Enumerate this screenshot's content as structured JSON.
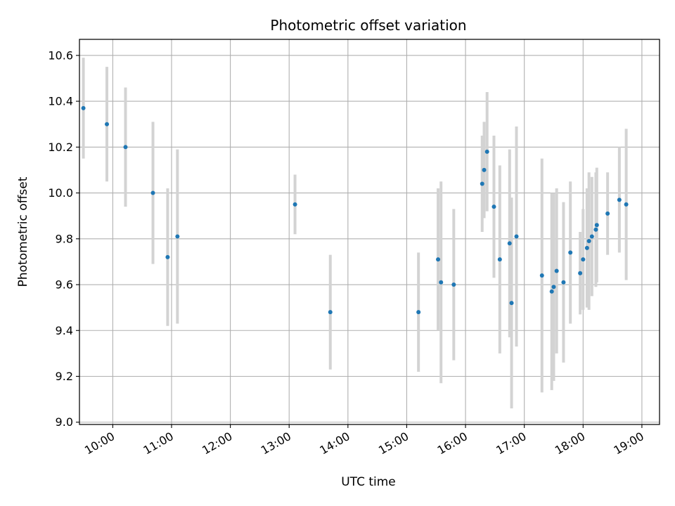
{
  "chart_data": {
    "type": "scatter",
    "title": "Photometric offset variation",
    "xlabel": "UTC time",
    "ylabel": "Photometric offset",
    "xlim": [
      "09:26",
      "19:18"
    ],
    "ylim": [
      8.99,
      10.67
    ],
    "x_ticks": [
      "10:00",
      "11:00",
      "12:00",
      "13:00",
      "14:00",
      "15:00",
      "16:00",
      "17:00",
      "18:00",
      "19:00"
    ],
    "y_ticks": [
      9.0,
      9.2,
      9.4,
      9.6,
      9.8,
      10.0,
      10.2,
      10.4,
      10.6
    ],
    "grid": true,
    "marker_color": "#1f77b4",
    "errorbar_color": "#d3d3d3",
    "points": [
      {
        "x": "09:30",
        "y": 10.37,
        "err": 0.22
      },
      {
        "x": "09:54",
        "y": 10.3,
        "err": 0.25
      },
      {
        "x": "10:13",
        "y": 10.2,
        "err": 0.26
      },
      {
        "x": "10:41",
        "y": 10.0,
        "err": 0.31
      },
      {
        "x": "10:56",
        "y": 9.72,
        "err": 0.3
      },
      {
        "x": "11:06",
        "y": 9.81,
        "err": 0.38
      },
      {
        "x": "13:06",
        "y": 9.95,
        "err": 0.13
      },
      {
        "x": "13:42",
        "y": 9.48,
        "err": 0.25
      },
      {
        "x": "15:12",
        "y": 9.48,
        "err": 0.26
      },
      {
        "x": "15:32",
        "y": 9.71,
        "err": 0.31
      },
      {
        "x": "15:35",
        "y": 9.61,
        "err": 0.44
      },
      {
        "x": "15:48",
        "y": 9.6,
        "err": 0.33
      },
      {
        "x": "16:17",
        "y": 10.04,
        "err": 0.21
      },
      {
        "x": "16:19",
        "y": 10.1,
        "err": 0.21
      },
      {
        "x": "16:22",
        "y": 10.18,
        "err": 0.26
      },
      {
        "x": "16:29",
        "y": 9.94,
        "err": 0.31
      },
      {
        "x": "16:35",
        "y": 9.71,
        "err": 0.41
      },
      {
        "x": "16:45",
        "y": 9.78,
        "err": 0.41
      },
      {
        "x": "16:47",
        "y": 9.52,
        "err": 0.46
      },
      {
        "x": "16:52",
        "y": 9.81,
        "err": 0.48
      },
      {
        "x": "17:18",
        "y": 9.64,
        "err": 0.51
      },
      {
        "x": "17:28",
        "y": 9.57,
        "err": 0.43
      },
      {
        "x": "17:30",
        "y": 9.59,
        "err": 0.41
      },
      {
        "x": "17:33",
        "y": 9.66,
        "err": 0.36
      },
      {
        "x": "17:40",
        "y": 9.61,
        "err": 0.35
      },
      {
        "x": "17:47",
        "y": 9.74,
        "err": 0.31
      },
      {
        "x": "17:57",
        "y": 9.65,
        "err": 0.18
      },
      {
        "x": "18:00",
        "y": 9.71,
        "err": 0.22
      },
      {
        "x": "18:04",
        "y": 9.76,
        "err": 0.26
      },
      {
        "x": "18:06",
        "y": 9.79,
        "err": 0.3
      },
      {
        "x": "18:09",
        "y": 9.81,
        "err": 0.26
      },
      {
        "x": "18:13",
        "y": 9.84,
        "err": 0.25
      },
      {
        "x": "18:14",
        "y": 9.86,
        "err": 0.25
      },
      {
        "x": "18:25",
        "y": 9.91,
        "err": 0.18
      },
      {
        "x": "18:37",
        "y": 9.97,
        "err": 0.23
      },
      {
        "x": "18:44",
        "y": 9.95,
        "err": 0.33
      }
    ]
  }
}
